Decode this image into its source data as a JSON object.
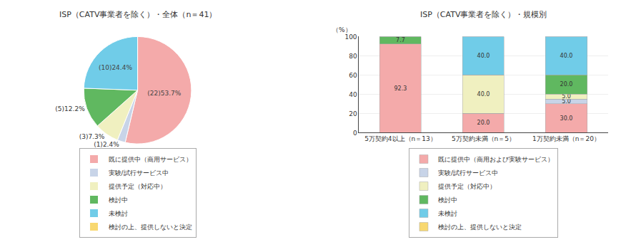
{
  "chart_data": [
    {
      "type": "pie",
      "title": "ISP（CATV事業者を除く）・全体（n＝41）",
      "categories": [
        "既に提供中（商用サービス）",
        "実験/試行サービス中",
        "提供予定（対応中）",
        "検討中",
        "未検討",
        "検討の上、提供しないと決定"
      ],
      "values": [
        53.7,
        2.4,
        7.3,
        12.2,
        24.4,
        0
      ],
      "value_labels": [
        "(22)53.7%",
        "(1)2.4%",
        "(3)7.3%",
        "(5)12.2%",
        "(10)24.4%",
        null
      ],
      "colors": [
        "#f4aaaa",
        "#c8d4e8",
        "#f0f0c0",
        "#60b860",
        "#70cce8",
        "#f8d870"
      ],
      "data_labels": true,
      "legend": "bottom"
    },
    {
      "type": "bar",
      "stacked": true,
      "title": "ISP（CATV事業者を除く）・規模別",
      "ylabel": "（%）",
      "categories": [
        "5万契約4以上（n＝13）",
        "5万契約未満（n＝5）",
        "1万契約未満（n＝20）"
      ],
      "series": [
        {
          "name": "既に提供中（商用および実験サービス）",
          "color": "#f4aaaa",
          "values": [
            92.3,
            20.0,
            30.0
          ],
          "value_labels": [
            "92.3",
            "20.0",
            "30.0"
          ]
        },
        {
          "name": "実験/試行サービス中",
          "color": "#c8d4e8",
          "values": [
            0.0,
            0.0,
            5.0
          ],
          "value_labels": [
            null,
            null,
            "5.0"
          ]
        },
        {
          "name": "提供予定（対応中）",
          "color": "#f0f0c0",
          "values": [
            0.0,
            40.0,
            5.0
          ],
          "value_labels": [
            null,
            "40.0",
            "5.0"
          ]
        },
        {
          "name": "検討中",
          "color": "#60b860",
          "values": [
            7.7,
            0.0,
            20.0
          ],
          "value_labels": [
            "7.7",
            null,
            "20.0"
          ]
        },
        {
          "name": "未検討",
          "color": "#70cce8",
          "values": [
            0.0,
            40.0,
            40.0
          ],
          "value_labels": [
            null,
            "40.0",
            "40.0"
          ]
        },
        {
          "name": "検討の上、提供しないと決定",
          "color": "#f8d870",
          "values": [
            0,
            0,
            0
          ],
          "value_labels": [
            null,
            null,
            null
          ]
        }
      ],
      "ylim": [
        0,
        100
      ],
      "yticks": [
        0,
        20,
        40,
        60,
        80,
        100
      ],
      "grid": true,
      "data_labels": true,
      "legend": "bottom"
    }
  ]
}
